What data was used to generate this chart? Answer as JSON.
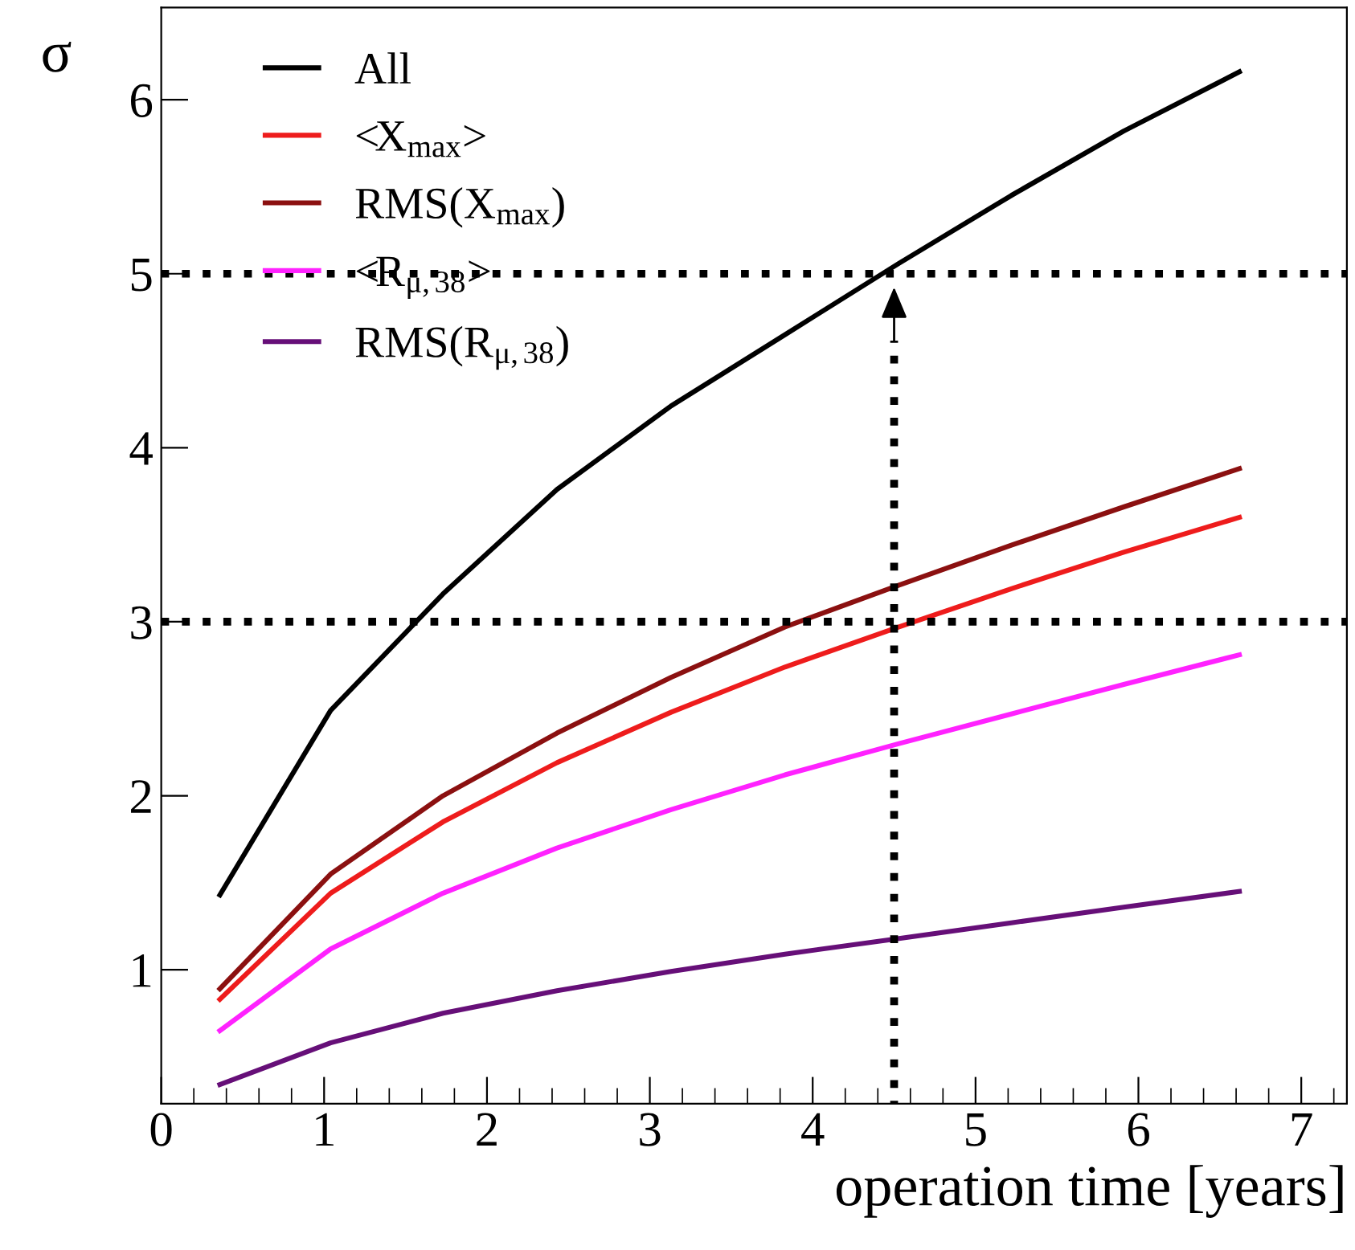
{
  "chart_data": {
    "type": "line",
    "xlabel": "operation time [years]",
    "ylabel": "σ",
    "x": [
      0.36,
      1.04,
      1.73,
      2.43,
      3.13,
      3.83,
      4.53,
      5.22,
      5.91,
      6.62
    ],
    "series": [
      {
        "name": "All",
        "color": "#000000",
        "values": [
          1.43,
          2.49,
          3.16,
          3.76,
          4.24,
          4.65,
          5.06,
          5.45,
          5.82,
          6.16
        ]
      },
      {
        "name": "<X$_{max}$>",
        "color": "#ee1c1c",
        "values": [
          0.83,
          1.44,
          1.85,
          2.19,
          2.48,
          2.74,
          2.97,
          3.19,
          3.4,
          3.6
        ]
      },
      {
        "name": "RMS(X$_{max}$)",
        "color": "#8b1010",
        "values": [
          0.89,
          1.55,
          2.0,
          2.36,
          2.68,
          2.97,
          3.21,
          3.44,
          3.66,
          3.88
        ]
      },
      {
        "name": "<R$_{μ,38}$>",
        "color": "#ff22ff",
        "values": [
          0.65,
          1.12,
          1.44,
          1.7,
          1.92,
          2.12,
          2.3,
          2.47,
          2.64,
          2.81
        ]
      },
      {
        "name": "RMS(R$_{μ,38}$)",
        "color": "#660f78",
        "values": [
          0.34,
          0.58,
          0.75,
          0.88,
          0.99,
          1.09,
          1.18,
          1.27,
          1.36,
          1.45
        ]
      }
    ],
    "xlim": [
      0,
      7.28
    ],
    "ylim": [
      0.23,
      6.53
    ],
    "xticks": [
      0,
      1,
      2,
      3,
      4,
      5,
      6,
      7
    ],
    "yticks": [
      1,
      2,
      3,
      4,
      5,
      6
    ],
    "ref_lines": [
      {
        "axis": "y",
        "value": 5,
        "line_style": "dotted"
      },
      {
        "axis": "y",
        "value": 3,
        "line_style": "dotted"
      },
      {
        "axis": "x",
        "value": 4.5,
        "line_style": "dotted"
      }
    ],
    "legend": "top left",
    "grid": false,
    "marker": "none",
    "line_style": "solid"
  }
}
